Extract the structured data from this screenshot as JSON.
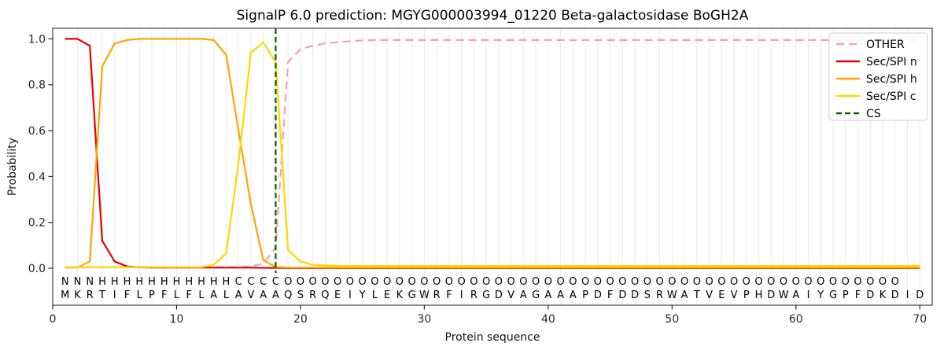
{
  "title": "SignalP 6.0 prediction: MGYG000003994_01220 Beta-galactosidase BoGH2A",
  "axes": {
    "xlabel": "Protein sequence",
    "ylabel": "Probability",
    "xticks": [
      0,
      10,
      20,
      30,
      40,
      50,
      60,
      70
    ],
    "yticks": [
      0.0,
      0.2,
      0.4,
      0.6,
      0.8,
      1.0
    ],
    "xlim": [
      0,
      71
    ],
    "ylim": [
      -0.161,
      1.046
    ],
    "grid": "vertical-per-residue",
    "grid_color": "#ebebeb"
  },
  "legend": {
    "position": "upper-right",
    "entries": [
      {
        "label": "OTHER",
        "color": "#f5a3a3",
        "dash": "10,6"
      },
      {
        "label": "Sec/SPI n",
        "color": "#e50000",
        "dash": ""
      },
      {
        "label": "Sec/SPI h",
        "color": "#ffa500",
        "dash": ""
      },
      {
        "label": "Sec/SPI c",
        "color": "#ffd700",
        "dash": ""
      },
      {
        "label": "CS",
        "color": "#006400",
        "dash": "7,4"
      }
    ]
  },
  "region_colors": {
    "N": "#e50000",
    "H": "#ffa500",
    "C": "#ffd700",
    "O": "#8a8a8a"
  },
  "sequence_color": "#3b3b3b",
  "chart_data": {
    "type": "line",
    "x_start": 1,
    "x_end": 70,
    "cs_position": 18,
    "region_labels": "NNNHHHHHHHHHHHCCCCOOOOOOOOOOOOOOOOOOOOOOOOOOOOOOOOOOOOOOOOOOOOOOOOOO",
    "sequence": "MKRTIFLPFLFLALAVAAQSRQEIYLEKGWRFIRGDVAGAAAPDFDDSRWATVEVPHDWAIYGPFDKDID",
    "series": [
      {
        "name": "OTHER",
        "color": "#f5a3a3",
        "dash": "10,6",
        "values": [
          0.005,
          0.005,
          0.005,
          0.005,
          0.005,
          0.005,
          0.005,
          0.005,
          0.005,
          0.005,
          0.005,
          0.005,
          0.005,
          0.005,
          0.005,
          0.008,
          0.02,
          0.09,
          0.9,
          0.955,
          0.97,
          0.98,
          0.985,
          0.99,
          0.993,
          0.995,
          0.995,
          0.995,
          0.995,
          0.995,
          0.995,
          0.995,
          0.995,
          0.995,
          0.995,
          0.995,
          0.995,
          0.995,
          0.995,
          0.995,
          0.995,
          0.995,
          0.995,
          0.995,
          0.995,
          0.995,
          0.995,
          0.995,
          0.995,
          0.995,
          0.995,
          0.995,
          0.995,
          0.995,
          0.995,
          0.995,
          0.995,
          0.995,
          0.995,
          0.995,
          0.995,
          0.995,
          0.995,
          0.995,
          0.995,
          0.995,
          0.995,
          0.995,
          0.995,
          0.995
        ]
      },
      {
        "name": "Sec/SPI n",
        "color": "#e50000",
        "dash": "",
        "values": [
          1.0,
          1.0,
          0.97,
          0.12,
          0.03,
          0.008,
          0.004,
          0.003,
          0.003,
          0.003,
          0.003,
          0.003,
          0.003,
          0.003,
          0.003,
          0.003,
          0.002,
          0.002,
          0.001,
          0.001,
          0.001,
          0.001,
          0.001,
          0.001,
          0.001,
          0.001,
          0.001,
          0.001,
          0.001,
          0.001,
          0.001,
          0.001,
          0.001,
          0.001,
          0.001,
          0.001,
          0.001,
          0.001,
          0.001,
          0.001,
          0.001,
          0.001,
          0.001,
          0.001,
          0.001,
          0.001,
          0.001,
          0.001,
          0.001,
          0.001,
          0.001,
          0.001,
          0.001,
          0.001,
          0.001,
          0.001,
          0.001,
          0.001,
          0.001,
          0.001,
          0.001,
          0.001,
          0.001,
          0.001,
          0.001,
          0.001,
          0.001,
          0.001,
          0.001,
          0.001
        ]
      },
      {
        "name": "Sec/SPI h",
        "color": "#ffa500",
        "dash": "",
        "values": [
          0.003,
          0.003,
          0.03,
          0.88,
          0.98,
          0.995,
          1.0,
          1.0,
          1.0,
          1.0,
          1.0,
          1.0,
          0.995,
          0.93,
          0.6,
          0.28,
          0.035,
          0.006,
          0.003,
          0.003,
          0.003,
          0.003,
          0.003,
          0.003,
          0.003,
          0.003,
          0.003,
          0.003,
          0.003,
          0.003,
          0.003,
          0.003,
          0.003,
          0.003,
          0.003,
          0.003,
          0.003,
          0.003,
          0.003,
          0.003,
          0.003,
          0.003,
          0.003,
          0.003,
          0.003,
          0.003,
          0.003,
          0.003,
          0.003,
          0.003,
          0.003,
          0.003,
          0.003,
          0.003,
          0.003,
          0.003,
          0.003,
          0.003,
          0.003,
          0.003,
          0.003,
          0.003,
          0.003,
          0.003,
          0.003,
          0.003,
          0.003,
          0.003,
          0.003,
          0.003
        ]
      },
      {
        "name": "Sec/SPI c",
        "color": "#ffd700",
        "dash": "",
        "values": [
          0.005,
          0.005,
          0.005,
          0.005,
          0.005,
          0.005,
          0.005,
          0.005,
          0.005,
          0.005,
          0.005,
          0.005,
          0.015,
          0.065,
          0.46,
          0.94,
          0.985,
          0.9,
          0.08,
          0.03,
          0.015,
          0.012,
          0.01,
          0.01,
          0.01,
          0.01,
          0.01,
          0.01,
          0.01,
          0.01,
          0.01,
          0.01,
          0.01,
          0.01,
          0.01,
          0.01,
          0.01,
          0.01,
          0.01,
          0.01,
          0.01,
          0.01,
          0.01,
          0.01,
          0.01,
          0.01,
          0.01,
          0.01,
          0.01,
          0.01,
          0.01,
          0.01,
          0.01,
          0.01,
          0.01,
          0.01,
          0.01,
          0.01,
          0.01,
          0.01,
          0.01,
          0.01,
          0.01,
          0.01,
          0.01,
          0.01,
          0.01,
          0.01,
          0.01,
          0.01
        ]
      }
    ]
  }
}
